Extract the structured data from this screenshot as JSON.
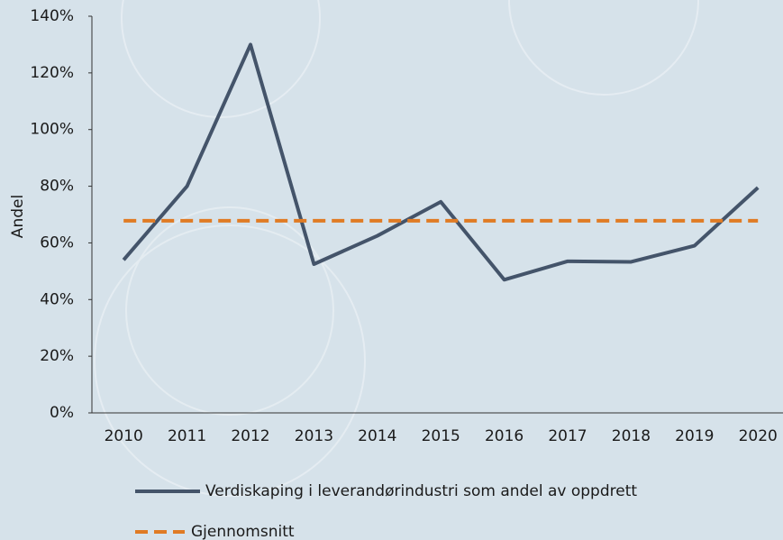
{
  "chart_data": {
    "type": "line",
    "y_label": "Andel",
    "categories": [
      "2010",
      "2011",
      "2012",
      "2013",
      "2014",
      "2015",
      "2016",
      "2017",
      "2018",
      "2019",
      "2020"
    ],
    "series": [
      {
        "name": "Verdiskaping i leverandørindustri som andel av oppdrett",
        "color": "#44546a",
        "dash": false,
        "values": [
          54,
          80,
          130,
          52.5,
          62.5,
          74.5,
          47,
          53.5,
          53.3,
          59,
          79.5
        ]
      },
      {
        "name": "Gjennomsnitt",
        "color": "#e07b24",
        "dash": true,
        "values": [
          67.8,
          67.8,
          67.8,
          67.8,
          67.8,
          67.8,
          67.8,
          67.8,
          67.8,
          67.8,
          67.8
        ]
      }
    ],
    "ylim": [
      0,
      140
    ],
    "yticks": [
      {
        "value": 0,
        "label": "0%"
      },
      {
        "value": 20,
        "label": "20%"
      },
      {
        "value": 40,
        "label": "40%"
      },
      {
        "value": 60,
        "label": "60%"
      },
      {
        "value": 80,
        "label": "80%"
      },
      {
        "value": 100,
        "label": "100%"
      },
      {
        "value": 120,
        "label": "120%"
      },
      {
        "value": 140,
        "label": "140%"
      }
    ],
    "grid": false
  }
}
